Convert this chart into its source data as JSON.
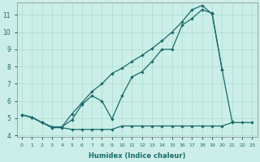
{
  "xlabel": "Humidex (Indice chaleur)",
  "bg_color": "#cceee8",
  "grid_color": "#aaddcc",
  "line_color": "#1a6b6b",
  "xlim": [
    -0.5,
    23.5
  ],
  "ylim": [
    3.9,
    11.7
  ],
  "yticks": [
    4,
    5,
    6,
    7,
    8,
    9,
    10,
    11
  ],
  "xticks": [
    0,
    1,
    2,
    3,
    4,
    5,
    6,
    7,
    8,
    9,
    10,
    11,
    12,
    13,
    14,
    15,
    16,
    17,
    18,
    19,
    20,
    21,
    22,
    23
  ],
  "line1_x": [
    0,
    1,
    2,
    3,
    4,
    5,
    6,
    7,
    8,
    9,
    10,
    11,
    12,
    13,
    14,
    15,
    16,
    17,
    18,
    19,
    20,
    21,
    22,
    23
  ],
  "line1_y": [
    5.2,
    5.05,
    4.75,
    4.45,
    4.45,
    4.35,
    4.35,
    4.35,
    4.35,
    4.35,
    4.55,
    4.55,
    4.55,
    4.55,
    4.55,
    4.55,
    4.55,
    4.55,
    4.55,
    4.55,
    4.55,
    4.75,
    4.75,
    4.75
  ],
  "line2_x": [
    0,
    1,
    2,
    3,
    4,
    5,
    6,
    7,
    8,
    9,
    10,
    11,
    12,
    13,
    14,
    15,
    16,
    17,
    18,
    19,
    20,
    21
  ],
  "line2_y": [
    5.2,
    5.05,
    4.75,
    4.5,
    4.5,
    4.9,
    5.8,
    6.3,
    6.0,
    4.95,
    6.3,
    7.4,
    7.7,
    8.3,
    9.0,
    9.0,
    10.4,
    10.8,
    11.3,
    11.1,
    7.8,
    4.8
  ],
  "line3_x": [
    0,
    1,
    2,
    3,
    4,
    5,
    6,
    7,
    8,
    9,
    10,
    11,
    12,
    13,
    14,
    15,
    16,
    17,
    18,
    19,
    20
  ],
  "line3_y": [
    5.2,
    5.05,
    4.75,
    4.5,
    4.5,
    5.25,
    5.9,
    6.55,
    7.0,
    7.6,
    7.9,
    8.3,
    8.65,
    9.05,
    9.5,
    10.0,
    10.6,
    11.3,
    11.55,
    11.05,
    7.8
  ]
}
